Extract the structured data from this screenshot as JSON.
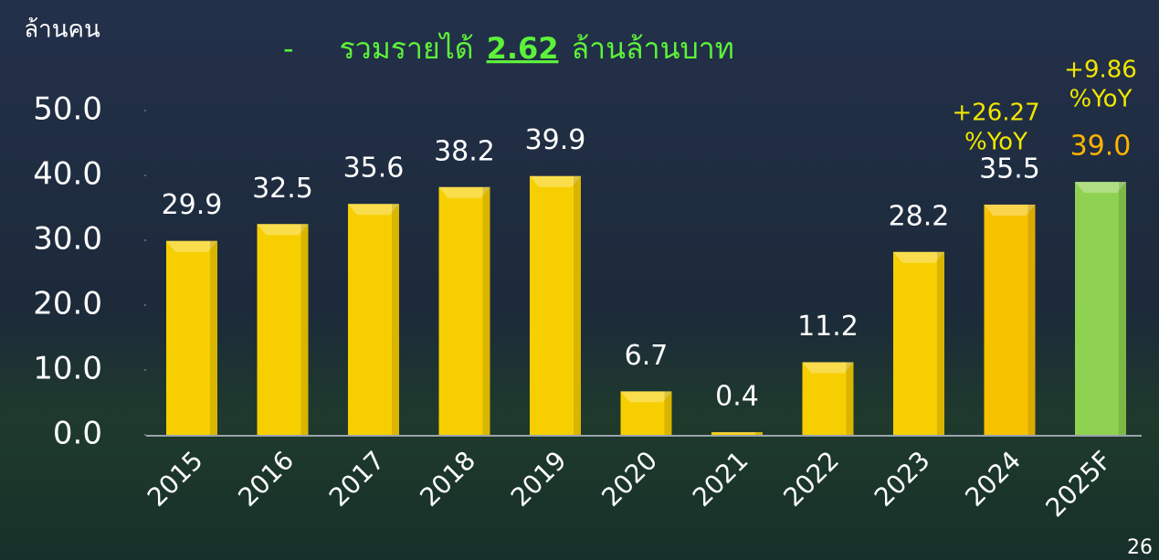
{
  "chart_data": {
    "type": "bar",
    "y_label": "ล้านคน",
    "title_parts": [
      "-",
      "รวมรายได้",
      "2.62",
      "ล้านล้านบาท"
    ],
    "categories": [
      "2015",
      "2016",
      "2017",
      "2018",
      "2019",
      "2020",
      "2021",
      "2022",
      "2023",
      "2024",
      "2025F"
    ],
    "values": [
      29.9,
      32.5,
      35.6,
      38.2,
      39.9,
      6.7,
      0.4,
      11.2,
      28.2,
      35.5,
      39.0
    ],
    "value_labels": [
      "29.9",
      "32.5",
      "35.6",
      "38.2",
      "39.9",
      "6.7",
      "0.4",
      "11.2",
      "28.2",
      "35.5",
      "39.0"
    ],
    "colors": [
      "#f7cf00",
      "#f7cf00",
      "#f7cf00",
      "#f7cf00",
      "#f7cf00",
      "#f7cf00",
      "#f7cf00",
      "#f7cf00",
      "#f7cf00",
      "#f7c200",
      "#8fd150"
    ],
    "value_label_colors": [
      "#ffffff",
      "#ffffff",
      "#ffffff",
      "#ffffff",
      "#ffffff",
      "#ffffff",
      "#ffffff",
      "#ffffff",
      "#ffffff",
      "#ffffff",
      "#ffb400"
    ],
    "annotations": [
      [
        "+26.27",
        "%YoY"
      ],
      [
        "+9.86",
        "%YoY"
      ]
    ],
    "ylim": [
      0,
      55
    ],
    "yticks": [
      {
        "value": 0,
        "label": "0.0"
      },
      {
        "value": 10,
        "label": "10.0"
      },
      {
        "value": 20,
        "label": "20.0"
      },
      {
        "value": 30,
        "label": "30.0"
      },
      {
        "value": 40,
        "label": "40.0"
      },
      {
        "value": 50,
        "label": "50.0"
      }
    ],
    "page_number": "26"
  }
}
